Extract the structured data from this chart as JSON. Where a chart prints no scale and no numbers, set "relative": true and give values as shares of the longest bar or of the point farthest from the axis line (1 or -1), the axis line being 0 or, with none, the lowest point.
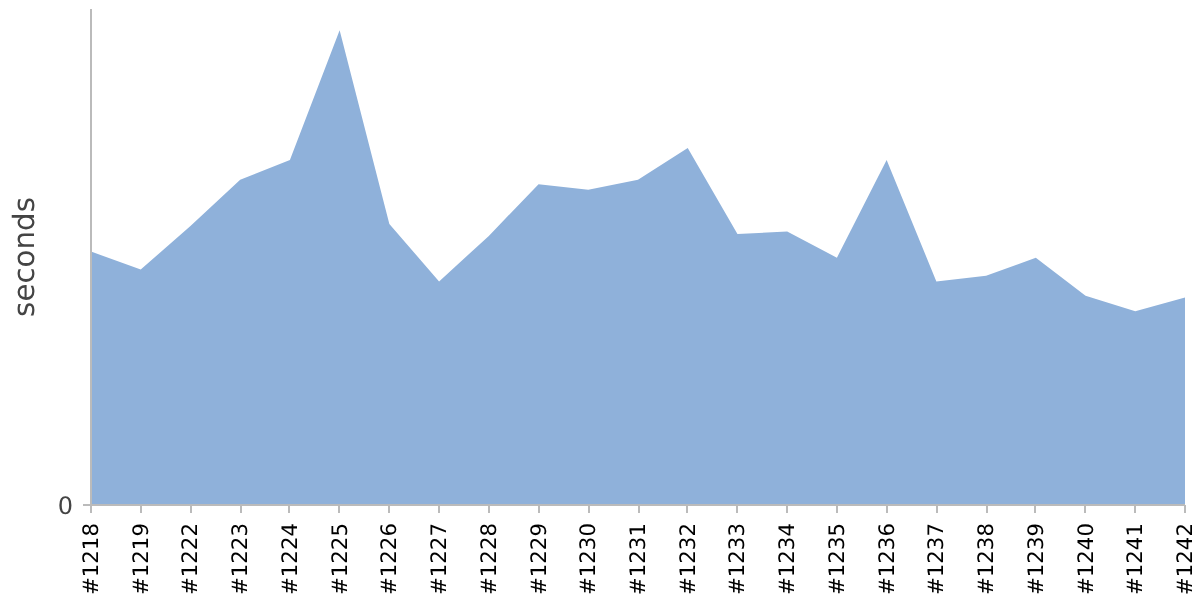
{
  "chart_data": {
    "type": "area",
    "relative": true,
    "ylabel": "seconds",
    "color": "#8fb1da",
    "categories": [
      "#1218",
      "#1219",
      "#1222",
      "#1223",
      "#1224",
      "#1225",
      "#1226",
      "#1227",
      "#1228",
      "#1229",
      "#1230",
      "#1231",
      "#1232",
      "#1233",
      "#1234",
      "#1235",
      "#1236",
      "#1237",
      "#1238",
      "#1239",
      "#1240",
      "#1241",
      "#1242"
    ],
    "values": [
      0.534,
      0.496,
      0.588,
      0.685,
      0.727,
      1,
      0.592,
      0.471,
      0.567,
      0.676,
      0.664,
      0.685,
      0.752,
      0.571,
      0.576,
      0.521,
      0.727,
      0.471,
      0.483,
      0.521,
      0.441,
      0.408,
      0.437
    ],
    "annotations": [
      "0"
    ],
    "grid": false
  }
}
